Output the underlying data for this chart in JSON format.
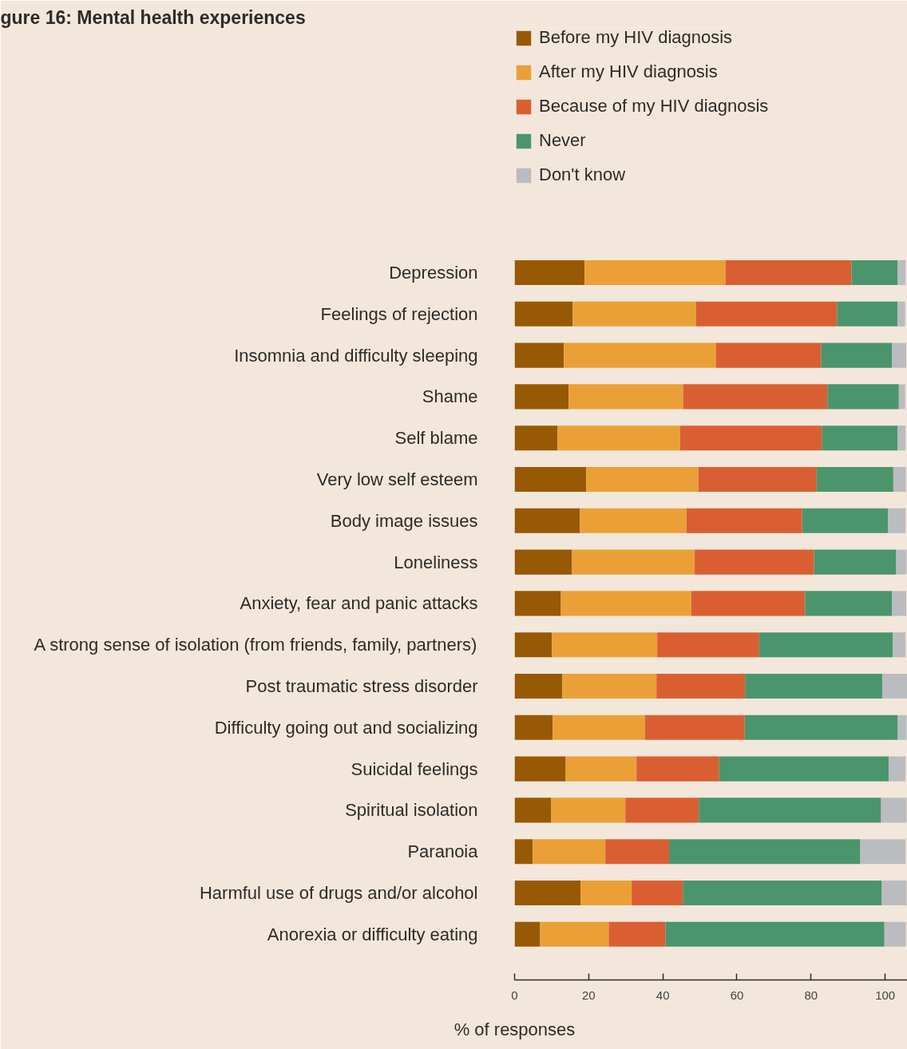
{
  "chart_data": {
    "type": "bar",
    "orientation": "horizontal",
    "stacked": true,
    "title": "gure 16: Mental health experiences",
    "xlabel": "% of responses",
    "categories": [
      "Depression",
      "Feelings of rejection",
      "Insomnia and difficulty sleeping",
      "Shame",
      "Self blame",
      "Very low self esteem",
      "Body image issues",
      "Loneliness",
      "Anxiety, fear and panic attacks",
      "A strong sense of isolation (from friends, family, partners)",
      "Post traumatic stress disorder",
      "Difficulty going out and socializing",
      "Suicidal feelings",
      "Spiritual isolation",
      "Paranoia",
      "Harmful use of drugs and/or alcohol",
      "Anorexia or difficulty eating"
    ],
    "series": [
      {
        "name": "Before my HIV diagnosis",
        "color": "#985904",
        "values": [
          18.9,
          15.7,
          13.3,
          14.6,
          11.6,
          19.3,
          17.6,
          15.5,
          12.5,
          10.1,
          12.9,
          10.3,
          13.8,
          9.9,
          4.9,
          17.8,
          6.9
        ]
      },
      {
        "name": "After my HIV diagnosis",
        "color": "#eaa037",
        "values": [
          38.0,
          33.3,
          41.0,
          30.9,
          33.1,
          30.3,
          28.8,
          33.1,
          35.2,
          28.4,
          25.4,
          24.9,
          19.1,
          20.0,
          19.6,
          13.8,
          18.5
        ]
      },
      {
        "name": "Because of my HIV diagnosis",
        "color": "#d95f33",
        "values": [
          34.0,
          38.0,
          28.4,
          38.9,
          38.2,
          31.9,
          31.2,
          32.2,
          30.7,
          27.5,
          23.9,
          26.9,
          22.3,
          19.8,
          17.2,
          13.8,
          15.3
        ]
      },
      {
        "name": "Never",
        "color": "#4b956c",
        "values": [
          12.5,
          16.3,
          19.1,
          19.3,
          20.5,
          20.7,
          23.2,
          22.2,
          23.4,
          36.1,
          37.0,
          41.3,
          45.8,
          49.2,
          51.6,
          53.7,
          59.1
        ]
      },
      {
        "name": "Don't know",
        "color": "#bbbcbf",
        "values": [
          2.1,
          2.1,
          3.9,
          1.7,
          2.1,
          3.4,
          4.7,
          2.8,
          3.9,
          3.4,
          6.7,
          2.4,
          4.5,
          6.9,
          12.2,
          6.7,
          5.8
        ]
      }
    ],
    "xlim": [
      0,
      106
    ],
    "xticks": [
      0,
      20,
      40,
      60,
      80,
      100
    ],
    "grid": false,
    "legend": "top left"
  }
}
